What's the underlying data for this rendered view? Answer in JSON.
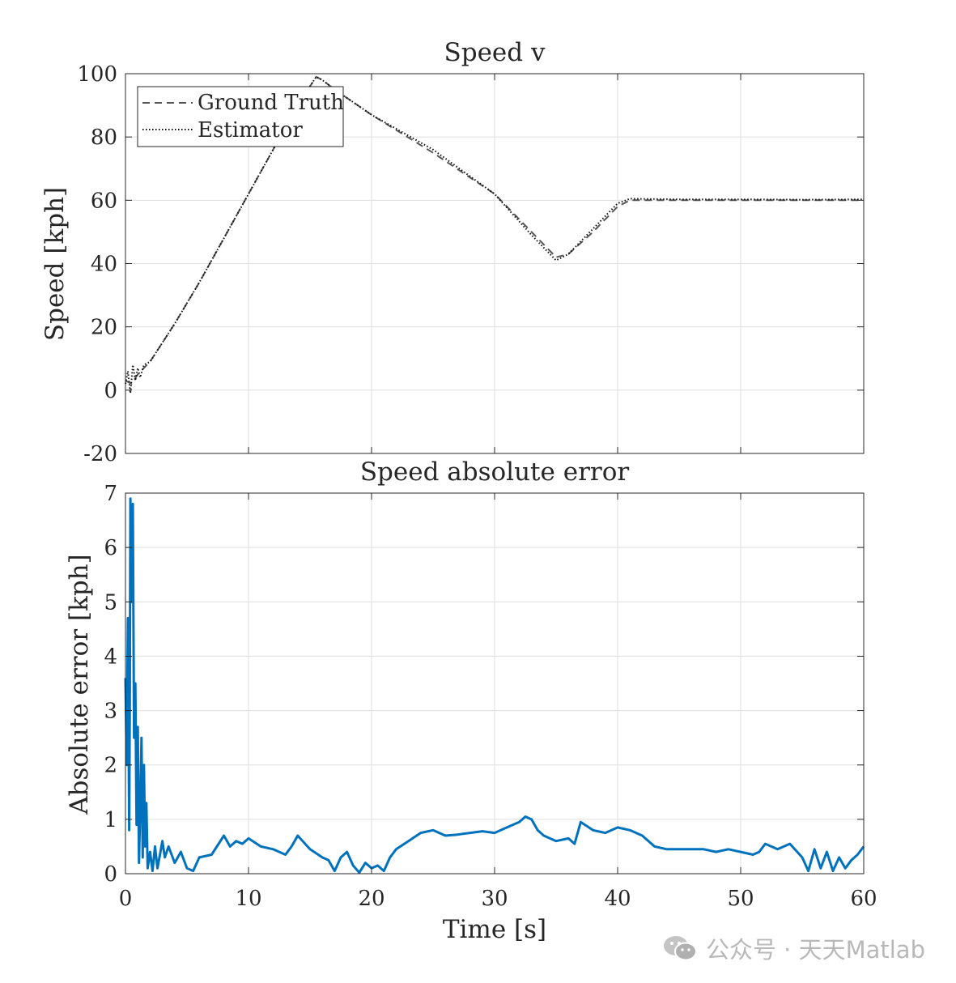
{
  "chart_data": [
    {
      "type": "line",
      "title": "Speed v",
      "xlabel": "",
      "ylabel": "Speed [kph]",
      "xlim": [
        0,
        60
      ],
      "ylim": [
        -20,
        100
      ],
      "xticks": [
        0,
        10,
        20,
        30,
        40,
        50,
        60
      ],
      "yticks": [
        -20,
        0,
        20,
        40,
        60,
        80,
        100
      ],
      "ytick_labels": [
        "-20",
        "0",
        "20",
        "40",
        "60",
        "80",
        "100"
      ],
      "grid": true,
      "legend_position": "top-left",
      "series": [
        {
          "name": "Ground Truth",
          "style": "dashed",
          "color": "#555555",
          "x": [
            0,
            0.5,
            1,
            1.5,
            2,
            4,
            6,
            8,
            10,
            12,
            14,
            15,
            15.5,
            16,
            17,
            20,
            25,
            30,
            33,
            35,
            36,
            38,
            40,
            41,
            45,
            50,
            55,
            60
          ],
          "y": [
            3,
            2,
            5,
            7,
            9,
            21,
            34,
            48,
            62,
            76,
            90,
            96,
            99,
            98,
            95,
            87,
            75,
            62,
            50,
            42,
            43,
            50,
            58,
            60,
            60,
            60,
            60,
            60
          ]
        },
        {
          "name": "Estimator",
          "style": "dotted",
          "color": "#111111",
          "x": [
            0,
            0.2,
            0.4,
            0.6,
            0.8,
            1.0,
            1.2,
            1.5,
            2,
            4,
            6,
            8,
            10,
            12,
            14,
            15,
            15.5,
            16,
            17,
            20,
            25,
            30,
            33,
            35,
            36,
            38,
            40,
            41,
            45,
            50,
            55,
            60
          ],
          "y": [
            2,
            6,
            -1,
            8,
            3,
            7,
            4,
            8,
            9,
            21,
            34,
            48,
            62,
            76,
            90,
            96,
            99,
            98,
            95,
            87,
            76,
            62,
            49,
            41,
            43,
            51,
            59,
            60.5,
            60.3,
            60.3,
            60.2,
            60.3
          ]
        }
      ]
    },
    {
      "type": "line",
      "title": "Speed absolute error",
      "xlabel": "Time [s]",
      "ylabel": "Absolute error [kph]",
      "xlim": [
        0,
        60
      ],
      "ylim": [
        0,
        7
      ],
      "xticks": [
        0,
        10,
        20,
        30,
        40,
        50,
        60
      ],
      "yticks": [
        0,
        1,
        2,
        3,
        4,
        5,
        6,
        7
      ],
      "grid": true,
      "series": [
        {
          "name": "Absolute error",
          "color": "#0072BD",
          "x": [
            0,
            0.1,
            0.2,
            0.3,
            0.35,
            0.4,
            0.5,
            0.6,
            0.7,
            0.8,
            0.9,
            1.0,
            1.1,
            1.2,
            1.3,
            1.4,
            1.5,
            1.6,
            1.7,
            1.8,
            2.0,
            2.2,
            2.4,
            2.6,
            2.8,
            3.0,
            3.2,
            3.5,
            4.0,
            4.5,
            5.0,
            5.5,
            6.0,
            7.0,
            8.0,
            8.5,
            9.0,
            9.5,
            10.0,
            11.0,
            12.0,
            13.0,
            13.5,
            14.0,
            15.0,
            16.0,
            16.5,
            17.0,
            17.5,
            18.0,
            18.5,
            19.0,
            19.5,
            20.0,
            20.5,
            21.0,
            21.5,
            22.0,
            23.0,
            24.0,
            25.0,
            26.0,
            27.0,
            28.0,
            29.0,
            30.0,
            31.0,
            32.0,
            32.5,
            33.0,
            33.5,
            34.0,
            35.0,
            36.0,
            36.5,
            37.0,
            38.0,
            39.0,
            40.0,
            41.0,
            42.0,
            43.0,
            44.0,
            45.0,
            46.0,
            47.0,
            48.0,
            49.0,
            50.0,
            51.0,
            51.5,
            52.0,
            53.0,
            54.0,
            55.0,
            55.5,
            56.0,
            56.5,
            57.0,
            57.5,
            58.0,
            58.5,
            59.0,
            59.5,
            60.0
          ],
          "y": [
            3.6,
            2.0,
            4.7,
            0.8,
            3.0,
            6.9,
            5.0,
            6.8,
            2.5,
            3.5,
            0.9,
            2.7,
            0.2,
            1.2,
            2.5,
            0.3,
            2.0,
            0.5,
            1.3,
            0.1,
            0.4,
            0.05,
            0.5,
            0.1,
            0.35,
            0.6,
            0.3,
            0.5,
            0.2,
            0.4,
            0.1,
            0.05,
            0.3,
            0.35,
            0.7,
            0.5,
            0.6,
            0.55,
            0.65,
            0.5,
            0.45,
            0.35,
            0.5,
            0.7,
            0.45,
            0.3,
            0.25,
            0.05,
            0.3,
            0.4,
            0.15,
            0.02,
            0.2,
            0.1,
            0.15,
            0.05,
            0.3,
            0.45,
            0.6,
            0.75,
            0.8,
            0.7,
            0.72,
            0.75,
            0.78,
            0.75,
            0.85,
            0.95,
            1.05,
            1.0,
            0.8,
            0.7,
            0.6,
            0.65,
            0.55,
            0.95,
            0.8,
            0.75,
            0.85,
            0.8,
            0.7,
            0.5,
            0.45,
            0.45,
            0.45,
            0.45,
            0.4,
            0.45,
            0.4,
            0.35,
            0.4,
            0.55,
            0.45,
            0.55,
            0.3,
            0.05,
            0.45,
            0.1,
            0.4,
            0.05,
            0.3,
            0.1,
            0.25,
            0.35,
            0.5
          ]
        }
      ]
    }
  ],
  "watermark": {
    "text": "公众号 · 天天Matlab",
    "icon": "wechat-icon"
  }
}
